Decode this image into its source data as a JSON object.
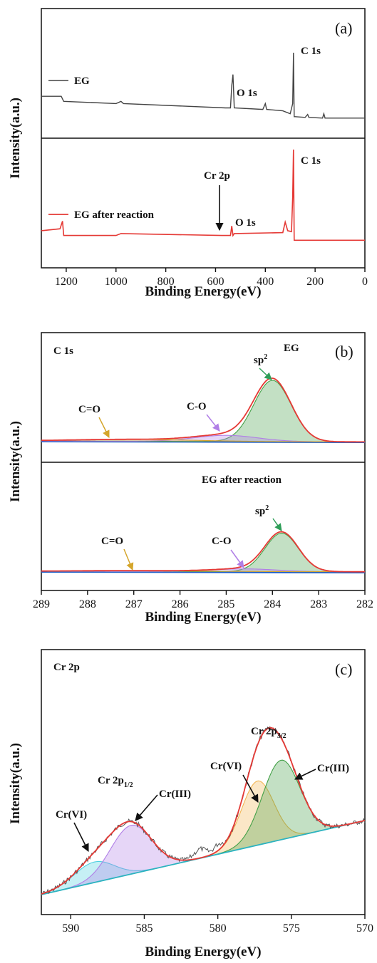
{
  "chart_data": [
    {
      "panel": "(a)",
      "type": "line",
      "xlabel": "Binding Energy(eV)",
      "ylabel": "Intensity(a.u.)",
      "xlim": [
        1300,
        0
      ],
      "xticks": [
        1200,
        1000,
        800,
        600,
        400,
        200,
        0
      ],
      "series": [
        {
          "name": "EG",
          "color": "#444444",
          "x": [
            1300,
            1220,
            1210,
            1000,
            980,
            970,
            560,
            540,
            535,
            530,
            525,
            410,
            400,
            395,
            330,
            300,
            290,
            287,
            284,
            280,
            240,
            230,
            225,
            170,
            165,
            160,
            0
          ],
          "y": [
            0.4,
            0.4,
            0.33,
            0.3,
            0.33,
            0.3,
            0.24,
            0.24,
            0.55,
            0.7,
            0.24,
            0.22,
            0.3,
            0.22,
            0.2,
            0.16,
            0.3,
            1.0,
            0.12,
            0.12,
            0.11,
            0.15,
            0.11,
            0.1,
            0.16,
            0.1,
            0.1
          ]
        },
        {
          "name": "EG after reaction",
          "color": "#e53935",
          "x": [
            1300,
            1225,
            1215,
            1210,
            1000,
            980,
            575,
            540,
            535,
            530,
            525,
            330,
            320,
            310,
            295,
            290,
            287,
            284,
            280,
            0
          ],
          "y": [
            0.15,
            0.17,
            0.25,
            0.1,
            0.1,
            0.12,
            0.1,
            0.1,
            0.2,
            0.1,
            0.12,
            0.13,
            0.24,
            0.15,
            0.14,
            0.5,
            1.0,
            0.05,
            0.05,
            0.05
          ]
        }
      ],
      "annotations": [
        {
          "text": "O 1s",
          "x": 530
        },
        {
          "text": "C 1s",
          "x": 284.5
        },
        {
          "text": "Cr 2p",
          "x": 577
        },
        {
          "text": "O 1s",
          "x": 531
        },
        {
          "text": "C 1s",
          "x": 284.5
        }
      ]
    },
    {
      "panel": "(b)",
      "type": "line",
      "title": "C 1s",
      "xlabel": "Binding Energy(eV)",
      "ylabel": "Intensity(a.u.)",
      "xlim": [
        289,
        282
      ],
      "xticks": [
        289,
        288,
        287,
        286,
        285,
        284,
        283,
        282
      ],
      "subplots": [
        {
          "label": "EG",
          "peaks": [
            {
              "name": "sp2",
              "center": 284.0,
              "fwhm": 0.95,
              "height": 1.0,
              "color": "#43a047"
            },
            {
              "name": "C-O",
              "center": 285.0,
              "fwhm": 1.6,
              "height": 0.1,
              "color": "#b07ee6"
            },
            {
              "name": "C=O",
              "center": 287.0,
              "fwhm": 3.0,
              "height": 0.03,
              "color": "#d4a52b"
            }
          ]
        },
        {
          "label": "EG after reaction",
          "peaks": [
            {
              "name": "sp2",
              "center": 283.8,
              "fwhm": 0.85,
              "height": 1.0,
              "color": "#43a047"
            },
            {
              "name": "C-O",
              "center": 284.6,
              "fwhm": 1.6,
              "height": 0.07,
              "color": "#b07ee6"
            },
            {
              "name": "C=O",
              "center": 287.0,
              "fwhm": 3.0,
              "height": 0.02,
              "color": "#d4a52b"
            }
          ]
        }
      ]
    },
    {
      "panel": "(c)",
      "type": "line",
      "title": "Cr 2p",
      "xlabel": "Binding Energy(eV)",
      "ylabel": "Intensity(a.u.)",
      "xlim": [
        592,
        570
      ],
      "xticks": [
        590,
        585,
        580,
        575,
        570
      ],
      "peaks": [
        {
          "name": "Cr(VI)",
          "group": "Cr 2p1/2",
          "center": 588.4,
          "fwhm": 3.2,
          "height": 0.16,
          "color": "#4dd0e1"
        },
        {
          "name": "Cr(III)",
          "group": "Cr 2p1/2",
          "center": 585.9,
          "fwhm": 3.3,
          "height": 0.38,
          "color": "#b07ee6"
        },
        {
          "name": "Cr(VI)",
          "group": "Cr 2p3/2",
          "center": 577.3,
          "fwhm": 2.6,
          "height": 0.5,
          "color": "#f2b552"
        },
        {
          "name": "Cr(III)",
          "group": "Cr 2p3/2",
          "center": 575.7,
          "fwhm": 3.0,
          "height": 0.62,
          "color": "#43a047"
        }
      ]
    }
  ],
  "labels": {
    "a_panel": "(a)",
    "a_eg": "EG",
    "a_o1s_1": "O 1s",
    "a_c1s_1": "C 1s",
    "a_cr2p": "Cr 2p",
    "a_eg_after": "EG after reaction",
    "a_o1s_2": "O 1s",
    "a_c1s_2": "C 1s",
    "b_panel": "(b)",
    "b_title": "C 1s",
    "b_eg": "EG",
    "b_sp2_1": "sp",
    "b_co_1": "C-O",
    "b_ceo_1": "C=O",
    "b_eg_after": "EG after reaction",
    "b_sp2_2": "sp",
    "b_co_2": "C-O",
    "b_ceo_2": "C=O",
    "sup2": "2",
    "c_panel": "(c)",
    "c_title": "Cr 2p",
    "c_group_32": "Cr 2p",
    "c_group_12": "Cr 2p",
    "sub_32": "3/2",
    "sub_12": "1/2",
    "c_crvi_1": "Cr(VI)",
    "c_criii_1": "Cr(III)",
    "c_crvi_2": "Cr(VI)",
    "c_criii_2": "Cr(III)",
    "xlabel": "Binding Energy(eV)",
    "ylabel": "Intensity(a.u.)"
  }
}
